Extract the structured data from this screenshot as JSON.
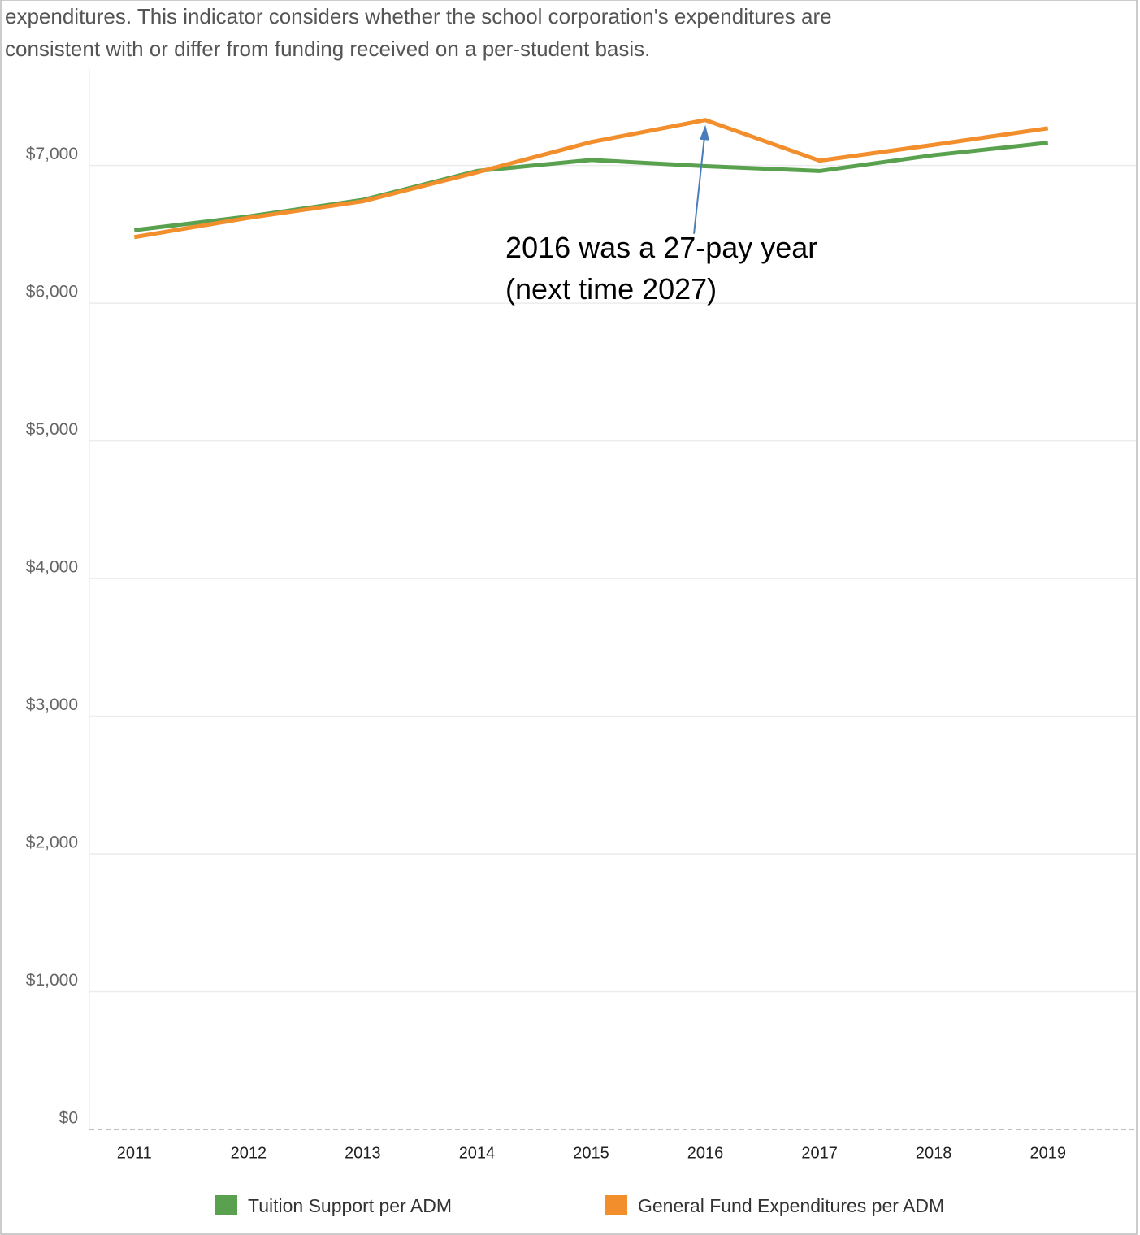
{
  "header": {
    "text": [
      "expenditures. This indicator considers whether the school corporation's expenditures are",
      "consistent with or differ from funding received on a per-student  basis."
    ]
  },
  "chart_data": {
    "type": "line",
    "categories": [
      "2011",
      "2012",
      "2013",
      "2014",
      "2015",
      "2016",
      "2017",
      "2018",
      "2019"
    ],
    "series": [
      {
        "name": "Tuition Support per ADM",
        "color": "#59a14f",
        "values": [
          6530,
          6630,
          6750,
          6960,
          7040,
          6995,
          6960,
          7075,
          7165
        ]
      },
      {
        "name": "General Fund Expenditures per ADM",
        "color": "#f28e2b",
        "values": [
          6480,
          6620,
          6740,
          6950,
          7170,
          7330,
          7035,
          7150,
          7270
        ]
      }
    ],
    "ylim": [
      0,
      7700
    ],
    "yticks": [
      {
        "value": 0,
        "label": "$0"
      },
      {
        "value": 1000,
        "label": "$1,000"
      },
      {
        "value": 2000,
        "label": "$2,000"
      },
      {
        "value": 3000,
        "label": "$3,000"
      },
      {
        "value": 4000,
        "label": "$4,000"
      },
      {
        "value": 5000,
        "label": "$5,000"
      },
      {
        "value": 6000,
        "label": "$6,000"
      },
      {
        "value": 7000,
        "label": "$7,000"
      }
    ],
    "grid": true,
    "annotation": {
      "text": [
        "2016 was a 27-pay year",
        "(next time 2027)"
      ],
      "category": 5,
      "series": 1
    },
    "legend": "bottom"
  }
}
